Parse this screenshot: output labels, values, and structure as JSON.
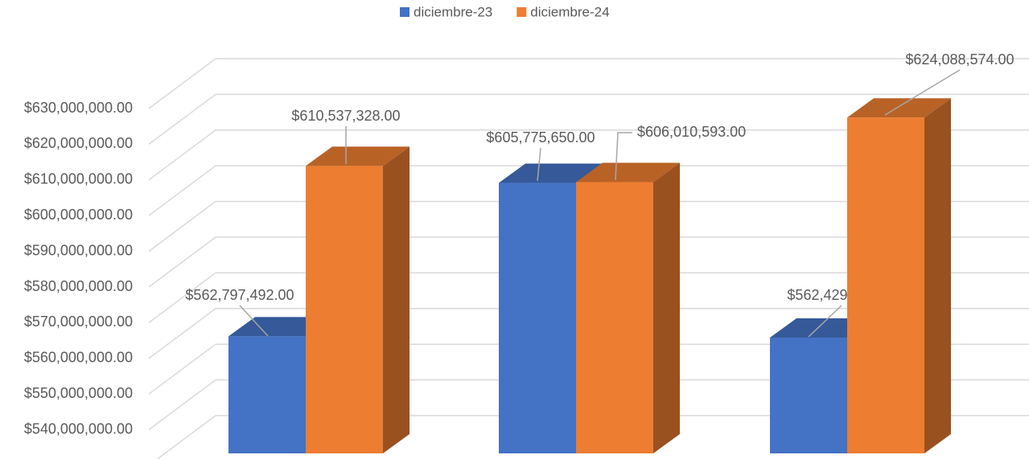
{
  "chart_data": {
    "type": "bar3d",
    "categories": [
      null,
      null,
      null
    ],
    "series": [
      {
        "name": "diciembre-23",
        "color": "#4472c4",
        "values": [
          562797492,
          605775650,
          562429906
        ],
        "value_labels": [
          "$562,797,492.00",
          "$605,775,650.00",
          "$562,429,906.00"
        ]
      },
      {
        "name": "diciembre-24",
        "color": "#ed7d31",
        "values": [
          610537328,
          606010593,
          624088574
        ],
        "value_labels": [
          "$610,537,328.00",
          "$606,010,593.00",
          "$624,088,574.00"
        ]
      }
    ],
    "ylim": [
      530000000,
      630000000
    ],
    "yticks": [
      {
        "value": 540000000,
        "label": "$540,000,000.00"
      },
      {
        "value": 550000000,
        "label": "$550,000,000.00"
      },
      {
        "value": 560000000,
        "label": "$560,000,000.00"
      },
      {
        "value": 570000000,
        "label": "$570,000,000.00"
      },
      {
        "value": 580000000,
        "label": "$580,000,000.00"
      },
      {
        "value": 590000000,
        "label": "$590,000,000.00"
      },
      {
        "value": 600000000,
        "label": "$600,000,000.00"
      },
      {
        "value": 610000000,
        "label": "$610,000,000.00"
      },
      {
        "value": 620000000,
        "label": "$620,000,000.00"
      },
      {
        "value": 630000000,
        "label": "$630,000,000.00"
      }
    ],
    "grid": true,
    "legend": "top"
  }
}
